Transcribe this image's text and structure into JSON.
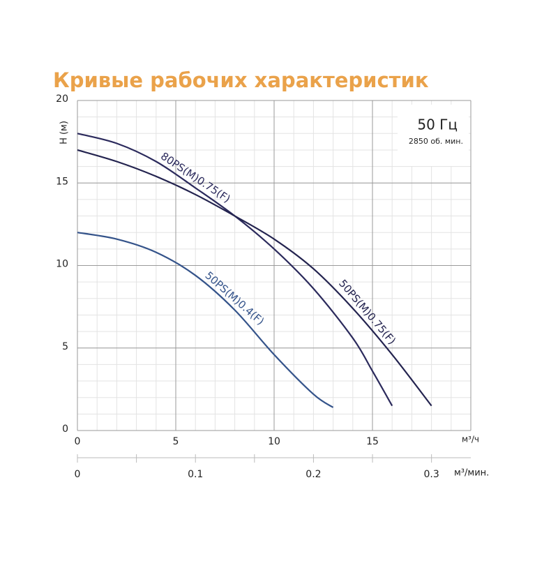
{
  "chart_data": {
    "type": "line",
    "title": "Кривые рабочих характеристик",
    "ylabel": "Н (м)",
    "xlabel": "м³/ч",
    "x2label": "м³/мин.",
    "annotations": [
      "50 Гц",
      "2850 об. мин."
    ],
    "xlim": [
      0,
      20
    ],
    "xticks": [
      0,
      5,
      10,
      15
    ],
    "ylim": [
      0,
      20
    ],
    "yticks": [
      0,
      5,
      10,
      15,
      20
    ],
    "x2lim": [
      0,
      0.3333
    ],
    "x2ticks": [
      0,
      0.1,
      0.2,
      0.3
    ],
    "x2minor_ticks": [
      0.05,
      0.15,
      0.25
    ],
    "grid": true,
    "minor_grid_step": 1,
    "series": [
      {
        "name": "80PS(M)0.75(F)",
        "color": "#2b2a5c",
        "x": [
          0,
          2,
          4,
          6,
          8,
          10,
          12,
          14,
          15,
          16
        ],
        "values": [
          18,
          17.4,
          16.3,
          14.7,
          13.0,
          11.0,
          8.6,
          5.6,
          3.6,
          1.5
        ]
      },
      {
        "name": "50PS(M)0.75(F)",
        "color": "#23234f",
        "x": [
          0,
          2,
          4,
          6,
          8,
          10,
          12,
          14,
          16,
          18
        ],
        "values": [
          17,
          16.3,
          15.4,
          14.3,
          13.0,
          11.6,
          9.8,
          7.4,
          4.6,
          1.5
        ]
      },
      {
        "name": "50PS(M)0.4(F)",
        "color": "#34538a",
        "x": [
          0,
          2,
          4,
          6,
          8,
          10,
          12,
          13
        ],
        "values": [
          12,
          11.6,
          10.8,
          9.4,
          7.3,
          4.6,
          2.2,
          1.4
        ]
      }
    ]
  }
}
